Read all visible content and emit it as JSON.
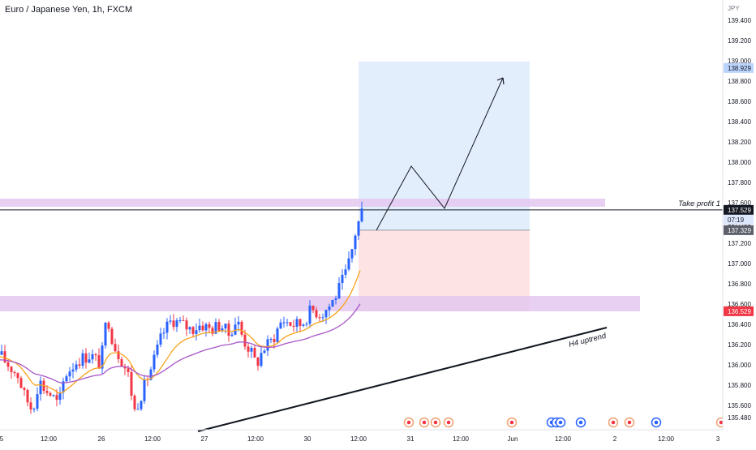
{
  "chart_data": {
    "type": "candlestick",
    "title": "Euro / Japanese Yen, 1h, FXCM",
    "currency": "JPY",
    "ylim": [
      135.4,
      139.6
    ],
    "y_ticks": [
      "139.400",
      "139.200",
      "139.000",
      "138.800",
      "138.600",
      "138.400",
      "138.200",
      "138.000",
      "137.800",
      "137.600",
      "137.400",
      "137.200",
      "137.000",
      "136.800",
      "136.600",
      "136.400",
      "136.200",
      "136.000",
      "135.800",
      "135.600",
      "135.480"
    ],
    "x_ticks": [
      "5",
      "12:00",
      "26",
      "12:00",
      "27",
      "12:00",
      "30",
      "12:00",
      "31",
      "12:00",
      "Jun",
      "12:00",
      "2",
      "12:00",
      "3"
    ],
    "price_labels": {
      "target": "138.929",
      "current": "137.529",
      "countdown": "07:19",
      "entry": "137.329",
      "stop": "136.529"
    },
    "annotations": [
      "Take profit 1",
      "H4 uptrend"
    ],
    "colors": {
      "up": "#2962ff",
      "down": "#f23645",
      "ema_fast": "#f7a21b",
      "ema_slow": "#a855c8",
      "zone": "#e4c8f0",
      "profit": "#e3eefc",
      "loss": "#fde3e3"
    }
  }
}
